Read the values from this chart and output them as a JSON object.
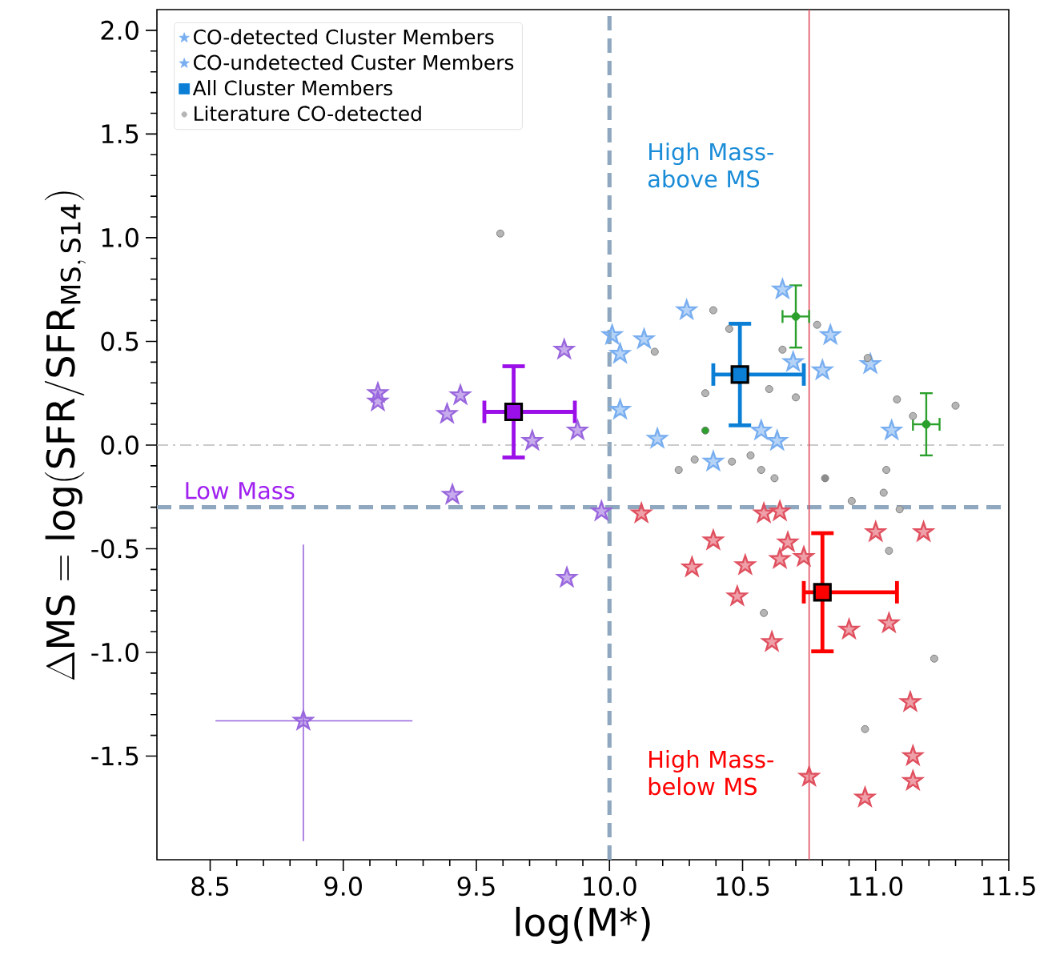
{
  "chart_data": {
    "type": "scatter",
    "xlabel": "log(M*)",
    "ylabel": "\\Delta\\mathrm{MS} = \\log(\\mathrm{SFR}/\\mathrm{SFR}_{\\mathrm{MS,\\,S14}})",
    "xlim": [
      8.3,
      11.5
    ],
    "ylim": [
      -2.0,
      2.1
    ],
    "xticks": [
      {
        "value": 8.5,
        "label": "8.5"
      },
      {
        "value": 9.0,
        "label": "9.0"
      },
      {
        "value": 9.5,
        "label": "9.5"
      },
      {
        "value": 10.0,
        "label": "10.0"
      },
      {
        "value": 10.5,
        "label": "10.5"
      },
      {
        "value": 11.0,
        "label": "11.0"
      },
      {
        "value": 11.5,
        "label": "11.5"
      }
    ],
    "yticks": [
      {
        "value": -1.5,
        "label": "-1.5"
      },
      {
        "value": -1.0,
        "label": "-1.0"
      },
      {
        "value": -0.5,
        "label": "-0.5"
      },
      {
        "value": 0.0,
        "label": "0.0"
      },
      {
        "value": 0.5,
        "label": "0.5"
      },
      {
        "value": 1.0,
        "label": "1.0"
      },
      {
        "value": 1.5,
        "label": "1.5"
      },
      {
        "value": 2.0,
        "label": "2.0"
      }
    ],
    "legend": "top left",
    "grid": false,
    "annotations": [
      "Low Mass",
      "High Mass-above MS",
      "High Mass-below MS"
    ],
    "ref_lines": [
      {
        "axis": "x",
        "value": 10.0,
        "color": "#8fa8bf",
        "line_style": "dashed"
      },
      {
        "axis": "y",
        "value": -0.3,
        "color": "#8fa8bf",
        "line_style": "dashed"
      },
      {
        "axis": "y",
        "value": 0.0,
        "color": "#bbbbbb",
        "line_style": "dashdot"
      }
    ],
    "series": [
      {
        "name": "CO-detected Cluster Members",
        "color": "#78aef0",
        "marker": "star",
        "x": [
          9.88,
          9.84,
          8.85,
          10.29,
          10.65,
          10.13,
          10.01,
          10.04,
          10.18,
          10.39,
          10.83,
          10.8,
          10.98,
          11.06,
          10.57,
          10.63,
          10.69,
          10.39,
          10.51,
          10.58,
          10.64,
          10.61,
          10.9,
          11.0,
          11.18,
          11.05,
          11.14,
          10.73
        ],
        "values": [
          0.07,
          -0.64,
          -1.33,
          0.65,
          0.75,
          0.51,
          0.53,
          0.44,
          0.03,
          -0.08,
          0.53,
          0.36,
          0.39,
          0.07,
          0.07,
          0.02,
          0.4,
          -0.46,
          -0.58,
          -0.33,
          -0.32,
          -0.95,
          -0.89,
          -0.42,
          -0.42,
          -0.86,
          -1.5,
          -0.54
        ],
        "colors": [
          "#9966dd",
          "#9966dd",
          "#9966dd",
          "#78aef0",
          "#78aef0",
          "#78aef0",
          "#78aef0",
          "#78aef0",
          "#78aef0",
          "#78aef0",
          "#78aef0",
          "#78aef0",
          "#78aef0",
          "#78aef0",
          "#78aef0",
          "#78aef0",
          "#78aef0",
          "#e0505f",
          "#e0505f",
          "#e0505f",
          "#e0505f",
          "#e0505f",
          "#e0505f",
          "#e0505f",
          "#e0505f",
          "#e0505f",
          "#e0505f",
          "#e0505f"
        ],
        "errors": [
          null,
          null,
          [
            -1.91,
            -0.48
          ],
          null,
          null,
          null,
          null,
          null,
          null,
          null,
          null,
          null,
          null,
          null,
          null,
          null,
          null,
          null,
          null,
          null,
          null,
          null,
          null,
          null,
          null,
          null,
          null,
          null
        ],
        "xerrors": [
          null,
          null,
          [
            8.52,
            9.26
          ],
          null,
          null,
          null,
          null,
          null,
          null,
          null,
          null,
          null,
          null,
          null,
          null,
          null,
          null,
          null,
          null,
          null,
          null,
          null,
          null,
          null,
          null,
          null,
          null,
          null
        ]
      },
      {
        "name": "CO-undetected Custer Members",
        "color": "#78aef0",
        "marker": "star",
        "x": [
          9.13,
          9.13,
          9.39,
          9.44,
          9.41,
          9.83,
          9.71,
          9.97,
          10.04,
          10.12,
          10.31,
          10.48,
          10.64,
          10.67,
          11.13,
          11.14,
          10.75,
          10.96
        ],
        "values": [
          0.25,
          0.21,
          0.15,
          0.24,
          -0.24,
          0.46,
          0.02,
          -0.32,
          0.17,
          -0.33,
          -0.59,
          -0.73,
          -0.55,
          -0.47,
          -1.24,
          -1.62,
          -1.6,
          -1.7
        ],
        "colors": [
          "#9966dd",
          "#9966dd",
          "#9966dd",
          "#9966dd",
          "#9966dd",
          "#9966dd",
          "#9966dd",
          "#9966dd",
          "#78aef0",
          "#e0505f",
          "#e0505f",
          "#e0505f",
          "#e0505f",
          "#e0505f",
          "#e0505f",
          "#e0505f",
          "#e0505f",
          "#e0505f"
        ],
        "errors": [
          null,
          null,
          null,
          null,
          null,
          null,
          null,
          null,
          null,
          null,
          null,
          null,
          null,
          null,
          null,
          null,
          [
            -2.0,
            2.1
          ],
          null
        ]
      },
      {
        "name": "All Cluster Members",
        "color": "#0b7fd6",
        "marker": "square",
        "x": [
          9.64,
          10.49,
          10.8
        ],
        "values": [
          0.16,
          0.34,
          -0.71
        ],
        "colors": [
          "#9b10e8",
          "#0b7fd6",
          "#ff0000"
        ],
        "errors": [
          0.22,
          0.245,
          0.285
        ],
        "xerrors": [
          [
            9.53,
            9.87
          ],
          [
            10.39,
            10.73
          ],
          [
            10.73,
            11.08
          ]
        ]
      },
      {
        "name": "Literature CO-detected",
        "color": "#b5b5b5",
        "marker": "circle",
        "x": [
          10.39,
          10.45,
          10.17,
          10.36,
          10.6,
          10.7,
          10.65,
          10.78,
          10.97,
          11.08,
          11.14,
          11.3,
          10.26,
          10.32,
          10.46,
          10.53,
          10.57,
          10.62,
          10.81,
          11.04,
          11.03,
          10.91,
          11.09,
          9.59,
          11.05,
          10.58,
          11.22,
          10.96
        ],
        "values": [
          0.65,
          0.56,
          0.45,
          0.25,
          0.27,
          0.23,
          0.46,
          0.58,
          0.42,
          0.22,
          0.14,
          0.19,
          -0.12,
          -0.07,
          -0.08,
          -0.05,
          -0.12,
          -0.16,
          -0.16,
          -0.12,
          -0.23,
          -0.27,
          -0.31,
          1.02,
          -0.51,
          -0.81,
          -1.03,
          -1.37
        ],
        "colors": [
          "#b5b5b5",
          "#b5b5b5",
          "#b5b5b5",
          "#b5b5b5",
          "#b5b5b5",
          "#b5b5b5",
          "#b5b5b5",
          "#b5b5b5",
          "#b5b5b5",
          "#b5b5b5",
          "#b5b5b5",
          "#b5b5b5",
          "#b5b5b5",
          "#b5b5b5",
          "#b5b5b5",
          "#b5b5b5",
          "#b5b5b5",
          "#b5b5b5",
          "#8c8c8c",
          "#b5b5b5",
          "#b5b5b5",
          "#b5b5b5",
          "#b5b5b5",
          "#b5b5b5",
          "#b5b5b5",
          "#b5b5b5",
          "#b5b5b5",
          "#b5b5b5"
        ]
      },
      {
        "color": "#2ca02c",
        "marker": "cross",
        "x": [
          10.7,
          11.19
        ],
        "values": [
          0.62,
          0.1
        ],
        "errors": [
          0.15,
          0.15
        ],
        "xerrors": [
          0.05,
          0.05
        ]
      },
      {
        "color": "#2ca02c",
        "marker": "circle",
        "x": [
          10.36
        ],
        "values": [
          0.07
        ]
      }
    ]
  }
}
